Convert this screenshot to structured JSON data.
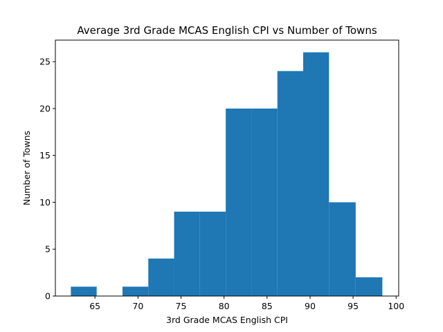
{
  "chart_data": {
    "type": "bar",
    "title": "Average 3rd Grade MCAS English CPI vs Number of Towns",
    "xlabel": "3rd Grade MCAS English CPI",
    "ylabel": "Number of Towns",
    "bin_edges": [
      62.1,
      65.1,
      68.1,
      71.1,
      74.1,
      77.1,
      80.1,
      83.1,
      86.1,
      89.1,
      92.1,
      95.1,
      98.1
    ],
    "bins": [
      {
        "x0": 62.2,
        "x1": 65.2,
        "count": 1
      },
      {
        "x0": 68.2,
        "x1": 71.2,
        "count": 1
      },
      {
        "x0": 71.2,
        "x1": 74.2,
        "count": 4
      },
      {
        "x0": 74.2,
        "x1": 77.2,
        "count": 9
      },
      {
        "x0": 77.2,
        "x1": 80.2,
        "count": 9
      },
      {
        "x0": 80.2,
        "x1": 83.2,
        "count": 20
      },
      {
        "x0": 83.2,
        "x1": 86.2,
        "count": 20
      },
      {
        "x0": 86.2,
        "x1": 89.2,
        "count": 24
      },
      {
        "x0": 89.2,
        "x1": 92.2,
        "count": 26
      },
      {
        "x0": 92.2,
        "x1": 95.3,
        "count": 10
      },
      {
        "x0": 95.3,
        "x1": 98.4,
        "count": 2
      }
    ],
    "xlim": [
      60.4,
      100.3
    ],
    "ylim": [
      0,
      27.3
    ],
    "xticks": [
      65,
      70,
      75,
      80,
      85,
      90,
      95,
      100
    ],
    "yticks": [
      0,
      5,
      10,
      15,
      20,
      25
    ],
    "color": "#1f77b4",
    "grid": false,
    "legend": "none"
  }
}
